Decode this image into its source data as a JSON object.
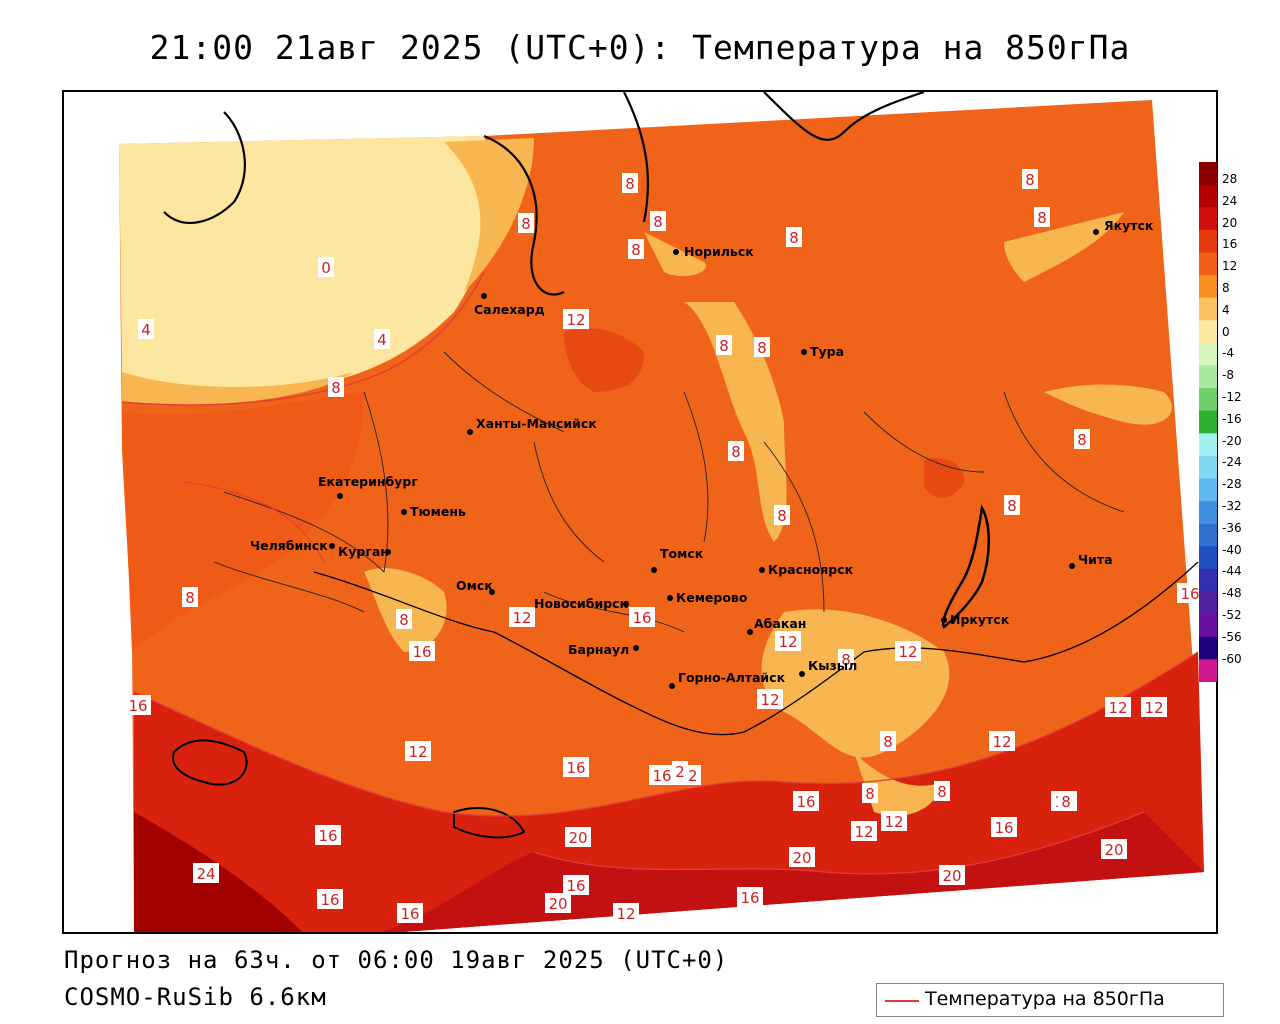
{
  "title": "21:00 21авг 2025 (UTC+0): Температура на 850гПа",
  "footer": {
    "forecast": "Прогноз на 63ч. от 06:00 19авг 2025 (UTC+0)",
    "model": "COSMO-RuSib 6.6км"
  },
  "legend": {
    "label": "Температура на 850гПа",
    "color": "#e03a3a"
  },
  "colorbar": {
    "ticks": [
      "28",
      "24",
      "20",
      "16",
      "12",
      "8",
      "4",
      "0",
      "-4",
      "-8",
      "-12",
      "-16",
      "-20",
      "-24",
      "-28",
      "-32",
      "-36",
      "-40",
      "-44",
      "-48",
      "-52",
      "-56",
      "-60"
    ],
    "colors": [
      "#8a0000",
      "#b30000",
      "#d40f0f",
      "#e83a10",
      "#f06018",
      "#f5901f",
      "#fbc060",
      "#fde9a0",
      "#d8f5c0",
      "#a8e8a0",
      "#6cd06c",
      "#30b030",
      "#a0f0f0",
      "#80d8f0",
      "#60b8f0",
      "#4090e0",
      "#3070d0",
      "#2050c0",
      "#3030b0",
      "#5020a0",
      "#6a10a0",
      "#200080",
      "#d01890"
    ]
  },
  "cities": [
    {
      "name": "Норильск"
    },
    {
      "name": "Якутск"
    },
    {
      "name": "Салехард"
    },
    {
      "name": "Тура"
    },
    {
      "name": "Ханты-Мансийск"
    },
    {
      "name": "Екатеринбург"
    },
    {
      "name": "Тюмень"
    },
    {
      "name": "Челябинск"
    },
    {
      "name": "Курган"
    },
    {
      "name": "Омск"
    },
    {
      "name": "Томск"
    },
    {
      "name": "Красноярск"
    },
    {
      "name": "Новосибирск"
    },
    {
      "name": "Кемерово"
    },
    {
      "name": "Абакан"
    },
    {
      "name": "Барнаул"
    },
    {
      "name": "Горно-Алтайск"
    },
    {
      "name": "Кызыл"
    },
    {
      "name": "Иркутск"
    },
    {
      "name": "Чита"
    }
  ],
  "isotherm_labels": [
    "8",
    "8",
    "8",
    "8",
    "8",
    "8",
    "8",
    "0",
    "4",
    "4",
    "8",
    "12",
    "8",
    "8",
    "8",
    "8",
    "8",
    "8",
    "8",
    "8",
    "8",
    "12",
    "16",
    "12",
    "8",
    "12",
    "12",
    "12",
    "12",
    "8",
    "8",
    "16",
    "12",
    "16",
    "16",
    "16",
    "16",
    "12",
    "16",
    "12",
    "12",
    "8",
    "8",
    "8",
    "16",
    "16",
    "12",
    "16",
    "20",
    "20",
    "20",
    "24",
    "16",
    "20",
    "16",
    "16",
    "20",
    "12",
    "12",
    "2",
    "2"
  ]
}
